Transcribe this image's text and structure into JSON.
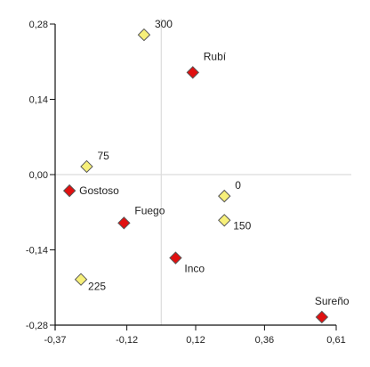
{
  "chart_data": {
    "type": "scatter",
    "title": "",
    "xlabel": "",
    "ylabel": "",
    "xlim": [
      -0.37,
      0.61
    ],
    "ylim": [
      -0.28,
      0.28
    ],
    "x_ticks": [
      -0.37,
      -0.12,
      0.12,
      0.36,
      0.61
    ],
    "x_tick_labels": [
      "-0,37",
      "-0,12",
      "0,12",
      "0,36",
      "0,61"
    ],
    "y_ticks": [
      0.28,
      0.14,
      0.0,
      -0.14,
      -0.28
    ],
    "y_tick_labels": [
      "0,28",
      "0,14",
      "0,00",
      "-0,14",
      "-0,28"
    ],
    "reference_lines": {
      "x": 0.0,
      "y": 0.0
    },
    "grid": false,
    "legend": "none",
    "series": [
      {
        "color": "#e01010",
        "marker": "diamond",
        "points": [
          {
            "label": "Rubí",
            "x": 0.11,
            "y": 0.19
          },
          {
            "label": "Gostoso",
            "x": -0.32,
            "y": -0.03
          },
          {
            "label": "Fuego",
            "x": -0.13,
            "y": -0.09
          },
          {
            "label": "Inco",
            "x": 0.05,
            "y": -0.155
          },
          {
            "label": "Sureño",
            "x": 0.56,
            "y": -0.265
          }
        ]
      },
      {
        "color": "#f7f07a",
        "marker": "diamond",
        "points": [
          {
            "label": "300",
            "x": -0.06,
            "y": 0.26
          },
          {
            "label": "75",
            "x": -0.26,
            "y": 0.015
          },
          {
            "label": "0",
            "x": 0.22,
            "y": -0.04
          },
          {
            "label": "150",
            "x": 0.22,
            "y": -0.085
          },
          {
            "label": "225",
            "x": -0.28,
            "y": -0.195
          }
        ]
      }
    ]
  }
}
